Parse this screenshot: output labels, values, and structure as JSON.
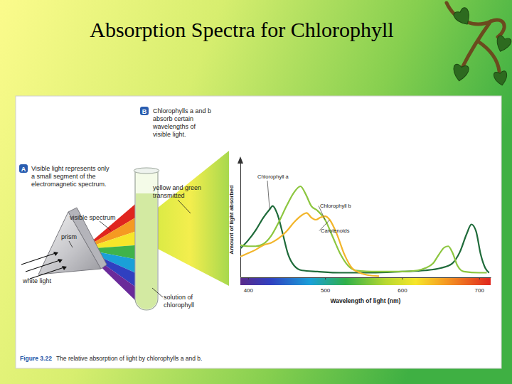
{
  "slide": {
    "title": "Absorption Spectra for Chlorophyll"
  },
  "diagram": {
    "panel_a": {
      "letter": "A",
      "lines": [
        "Visible light represents only",
        "a small segment of the",
        "electromagnetic spectrum."
      ]
    },
    "panel_b": {
      "letter": "B",
      "lines": [
        "Chlorophylls a and b",
        "absorb certain",
        "wavelengths of",
        "visible light."
      ]
    },
    "transmitted": [
      "yellow and green",
      "transmitted"
    ],
    "visible_spectrum": "visible spectrum",
    "prism": "prism",
    "white_light": "white light",
    "solution": [
      "solution of",
      "chlorophyll"
    ]
  },
  "caption": {
    "number": "Figure 3.22",
    "text": "The relative absorption of light by chlorophylls a and b."
  },
  "chart_data": {
    "type": "line",
    "x_label": "Wavelength of light (nm)",
    "y_label": "Amount of light absorbed",
    "xlim": [
      390,
      715
    ],
    "xticks": [
      400,
      500,
      600,
      700
    ],
    "ylim": [
      0,
      100
    ],
    "yticks": [],
    "tick_labels": "x",
    "series": [
      {
        "name": "Chlorophyll a",
        "color": "#1f6b3a",
        "x": [
          390,
          400,
          410,
          420,
          428,
          432,
          438,
          445,
          452,
          460,
          470,
          490,
          520,
          560,
          600,
          630,
          650,
          665,
          675,
          684,
          690,
          696,
          702,
          708,
          713
        ],
        "values": [
          25,
          32,
          41,
          52,
          59,
          62,
          55,
          38,
          20,
          10,
          6,
          5,
          4,
          4,
          5,
          6,
          8,
          12,
          22,
          38,
          46,
          40,
          20,
          8,
          4
        ]
      },
      {
        "name": "Chlorophyll b",
        "color": "#8cc63f",
        "x": [
          390,
          400,
          410,
          420,
          430,
          440,
          450,
          460,
          468,
          475,
          482,
          490,
          500,
          510,
          520,
          530,
          540,
          560,
          580,
          600,
          620,
          630,
          640,
          648,
          655,
          660,
          665,
          672,
          680,
          700,
          710
        ],
        "values": [
          28,
          27,
          27,
          29,
          36,
          48,
          62,
          74,
          79,
          72,
          62,
          58,
          50,
          35,
          20,
          10,
          6,
          5,
          5,
          5,
          6,
          8,
          12,
          20,
          26,
          27,
          22,
          10,
          5,
          4,
          4
        ]
      },
      {
        "name": "Carotenoids",
        "color": "#f2b52a",
        "x": [
          390,
          400,
          410,
          420,
          430,
          440,
          450,
          460,
          470,
          476,
          482,
          488,
          494,
          500,
          506,
          515,
          525,
          535,
          545,
          555,
          570
        ],
        "values": [
          18,
          21,
          24,
          28,
          30,
          34,
          40,
          48,
          54,
          56,
          52,
          50,
          52,
          53,
          50,
          38,
          20,
          8,
          4,
          2,
          1
        ]
      }
    ]
  }
}
